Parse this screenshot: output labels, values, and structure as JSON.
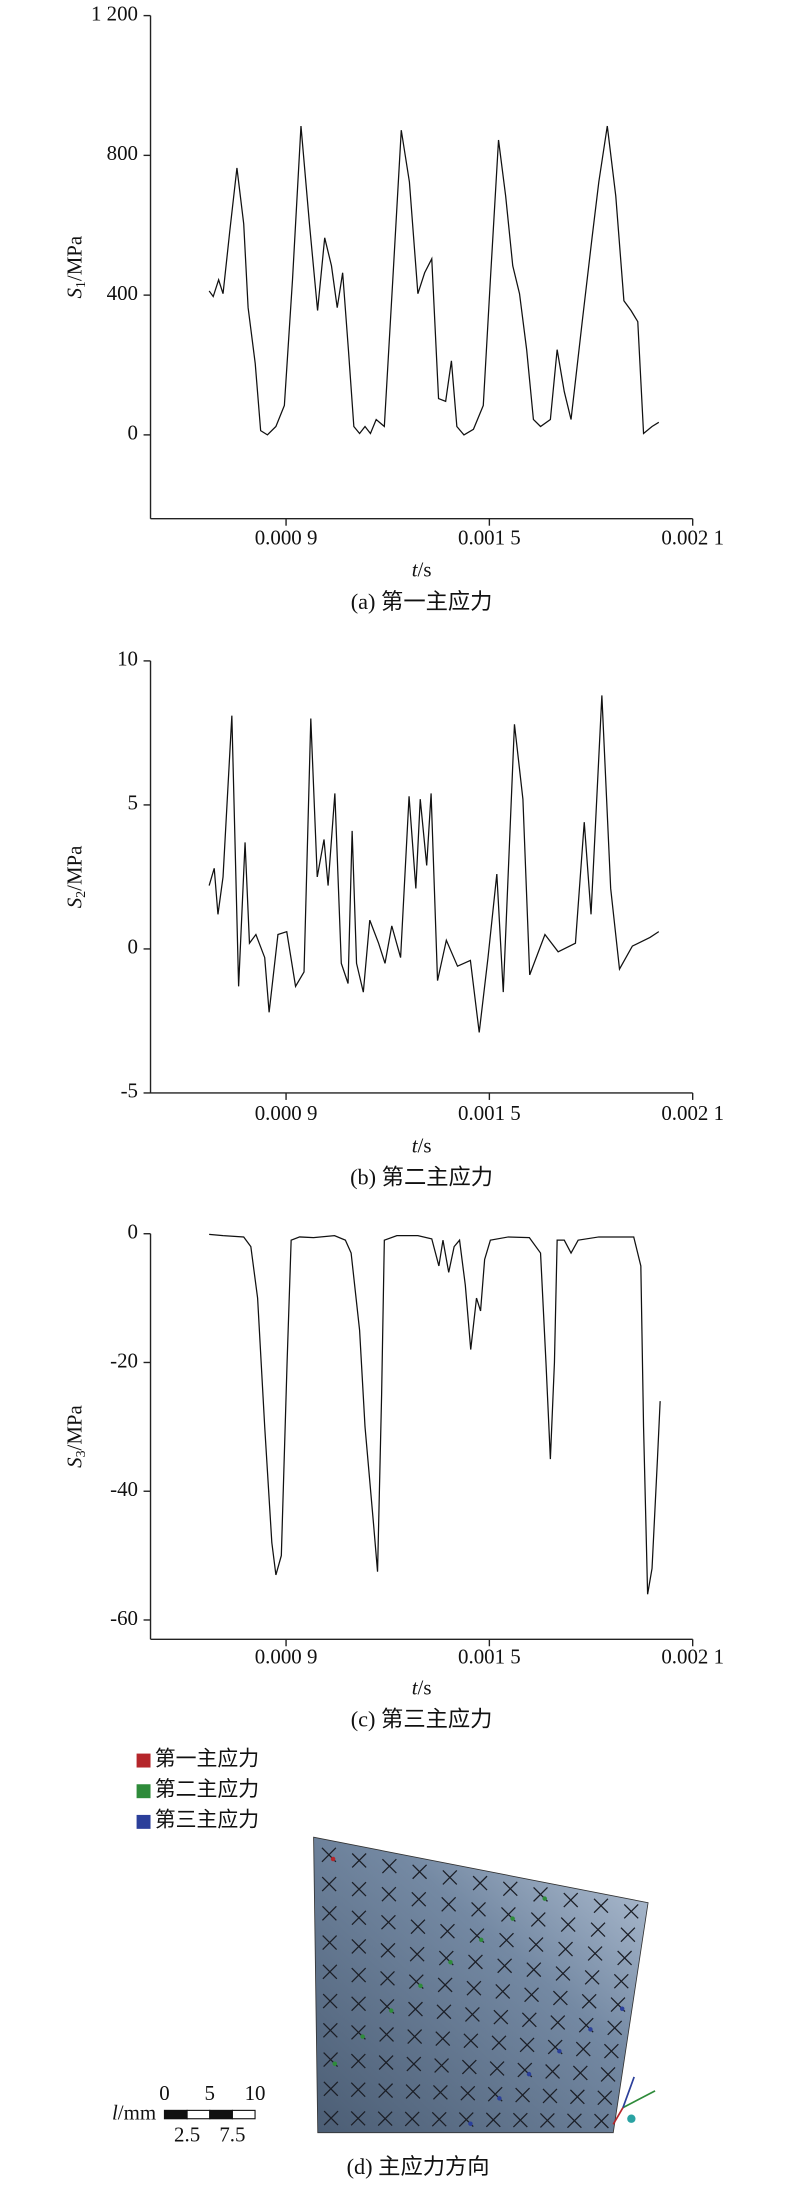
{
  "chart_data": [
    {
      "type": "line",
      "caption": "(a) 第一主应力",
      "y_label": {
        "symbol": "S",
        "subscript": "1",
        "unit": "/MPa"
      },
      "x_label": {
        "symbol": "t",
        "unit": "/s"
      },
      "xlim": [
        0.0005,
        0.0021
      ],
      "xticks": [
        {
          "value": 0.0009,
          "label": "0.000 9"
        },
        {
          "value": 0.0015,
          "label": "0.001 5"
        },
        {
          "value": 0.0021,
          "label": "0.002 1"
        }
      ],
      "ylim": [
        -240,
        1200
      ],
      "yticks": [
        0,
        400,
        800,
        {
          "value": 1200,
          "label": "1 200"
        }
      ],
      "x": [
        0.000673,
        0.000685,
        0.000701,
        0.000714,
        0.000734,
        0.000755,
        0.000775,
        0.000788,
        0.000809,
        0.000825,
        0.000845,
        0.00087,
        0.000895,
        0.000919,
        0.000944,
        0.000969,
        0.000993,
        0.001014,
        0.001034,
        0.001051,
        0.001067,
        0.001084,
        0.0011,
        0.001117,
        0.001133,
        0.001149,
        0.001166,
        0.00119,
        0.001215,
        0.00124,
        0.001264,
        0.001289,
        0.001309,
        0.00133,
        0.00135,
        0.001371,
        0.001388,
        0.001404,
        0.001425,
        0.001453,
        0.001482,
        0.001503,
        0.001527,
        0.001548,
        0.001569,
        0.001589,
        0.00161,
        0.00163,
        0.001651,
        0.00168,
        0.0017,
        0.001721,
        0.001741,
        0.001774,
        0.001803,
        0.001823,
        0.001848,
        0.001873,
        0.001897,
        0.001918,
        0.001938,
        0.001955,
        0.00198,
        0.002
      ],
      "series": [
        {
          "color": "#111111",
          "values": [
            412,
            396,
            444,
            404,
            584,
            764,
            604,
            364,
            204,
            12,
            0,
            24,
            84,
            444,
            884,
            604,
            356,
            564,
            484,
            364,
            464,
            244,
            24,
            4,
            24,
            4,
            44,
            24,
            444,
            872,
            724,
            404,
            464,
            504,
            104,
            96,
            212,
            24,
            0,
            16,
            84,
            444,
            844,
            684,
            484,
            404,
            244,
            44,
            24,
            44,
            244,
            124,
            44,
            324,
            564,
            724,
            884,
            684,
            384,
            356,
            324,
            4,
            24,
            36
          ]
        }
      ]
    },
    {
      "type": "line",
      "caption": "(b) 第二主应力",
      "y_label": {
        "symbol": "S",
        "subscript": "2",
        "unit": "/MPa"
      },
      "x_label": {
        "symbol": "t",
        "unit": "/s"
      },
      "xlim": [
        0.0005,
        0.0021
      ],
      "xticks": [
        {
          "value": 0.0009,
          "label": "0.000 9"
        },
        {
          "value": 0.0015,
          "label": "0.001 5"
        },
        {
          "value": 0.0021,
          "label": "0.002 1"
        }
      ],
      "ylim": [
        -5,
        10
      ],
      "yticks": [
        -5,
        0,
        5,
        10
      ],
      "x": [
        0.000673,
        0.000688,
        0.000699,
        0.000714,
        0.00074,
        0.00076,
        0.000779,
        0.000792,
        0.000811,
        0.000837,
        0.00085,
        0.000876,
        0.000902,
        0.000928,
        0.000953,
        0.000973,
        0.000992,
        0.001012,
        0.001024,
        0.001044,
        0.001063,
        0.001083,
        0.001095,
        0.001108,
        0.001128,
        0.001147,
        0.001173,
        0.001192,
        0.001212,
        0.001238,
        0.001263,
        0.001283,
        0.001296,
        0.001315,
        0.001328,
        0.001347,
        0.001373,
        0.001406,
        0.001444,
        0.00147,
        0.001496,
        0.001522,
        0.001541,
        0.001574,
        0.001599,
        0.001619,
        0.001664,
        0.001703,
        0.001754,
        0.00178,
        0.0018,
        0.001832,
        0.001858,
        0.001884,
        0.001922,
        0.001974,
        0.002
      ],
      "series": [
        {
          "color": "#111111",
          "values": [
            2.2,
            2.8,
            1.2,
            2.5,
            8.1,
            -1.3,
            3.7,
            0.2,
            0.5,
            -0.3,
            -2.2,
            0.5,
            0.6,
            -1.3,
            -0.8,
            8.0,
            2.5,
            3.8,
            2.2,
            5.4,
            -0.5,
            -1.2,
            4.1,
            -0.5,
            -1.5,
            1.0,
            0.2,
            -0.5,
            0.8,
            -0.3,
            5.3,
            2.1,
            5.2,
            2.9,
            5.4,
            -1.1,
            0.3,
            -0.6,
            -0.4,
            -2.9,
            -0.3,
            2.6,
            -1.5,
            7.8,
            5.2,
            -0.9,
            0.5,
            -0.1,
            0.2,
            4.4,
            1.2,
            8.8,
            2.1,
            -0.7,
            0.1,
            0.4,
            0.6
          ]
        }
      ]
    },
    {
      "type": "line",
      "caption": "(c) 第三主应力",
      "y_label": {
        "symbol": "S",
        "subscript": "3",
        "unit": "/MPa"
      },
      "x_label": {
        "symbol": "t",
        "unit": "/s"
      },
      "xlim": [
        0.0005,
        0.0021
      ],
      "xticks": [
        {
          "value": 0.0009,
          "label": "0.000 9"
        },
        {
          "value": 0.0015,
          "label": "0.001 5"
        },
        {
          "value": 0.0021,
          "label": "0.002 1"
        }
      ],
      "ylim": [
        -63,
        0
      ],
      "yticks": [
        0,
        -20,
        -40,
        -60
      ],
      "x": [
        0.000673,
        0.000714,
        0.000775,
        0.000796,
        0.000816,
        0.000837,
        0.000858,
        0.00087,
        0.000886,
        0.000903,
        0.000915,
        0.00094,
        0.000981,
        0.001043,
        0.001075,
        0.001092,
        0.001117,
        0.001133,
        0.001158,
        0.00117,
        0.001182,
        0.00119,
        0.001227,
        0.001289,
        0.00133,
        0.001351,
        0.001363,
        0.00138,
        0.001396,
        0.001412,
        0.001429,
        0.001445,
        0.001462,
        0.001474,
        0.001486,
        0.001503,
        0.001556,
        0.001618,
        0.001651,
        0.001667,
        0.00168,
        0.001692,
        0.0017,
        0.001721,
        0.001741,
        0.001762,
        0.001823,
        0.001926,
        0.001947,
        0.001955,
        0.001967,
        0.00198,
        0.001996,
        0.002004
      ],
      "series": [
        {
          "color": "#111111",
          "values": [
            -0.1,
            -0.3,
            -0.5,
            -2,
            -10,
            -30,
            -48,
            -53,
            -50,
            -20,
            -1,
            -0.5,
            -0.6,
            -0.3,
            -1,
            -3,
            -15,
            -30,
            -45,
            -52.5,
            -25,
            -1,
            -0.3,
            -0.3,
            -0.8,
            -5,
            -1,
            -6,
            -2,
            -1,
            -8,
            -18,
            -10,
            -12,
            -4,
            -1,
            -0.5,
            -0.6,
            -3,
            -20,
            -35,
            -20,
            -1,
            -1,
            -3,
            -1,
            -0.5,
            -0.5,
            -5,
            -30,
            -56,
            -52,
            -35,
            -26
          ]
        }
      ]
    }
  ],
  "panel_d": {
    "caption": "(d) 主应力方向",
    "legend": [
      {
        "label": "第一主应力",
        "color": "#b5262b"
      },
      {
        "label": "第二主应力",
        "color": "#2e8b3a"
      },
      {
        "label": "第三主应力",
        "color": "#2b3f9a"
      }
    ],
    "scale_bar": {
      "symbol": "l",
      "unit": "/mm",
      "top_labels": [
        "0",
        "5",
        "10"
      ],
      "bottom_labels": [
        "2.5",
        "7.5"
      ]
    }
  }
}
